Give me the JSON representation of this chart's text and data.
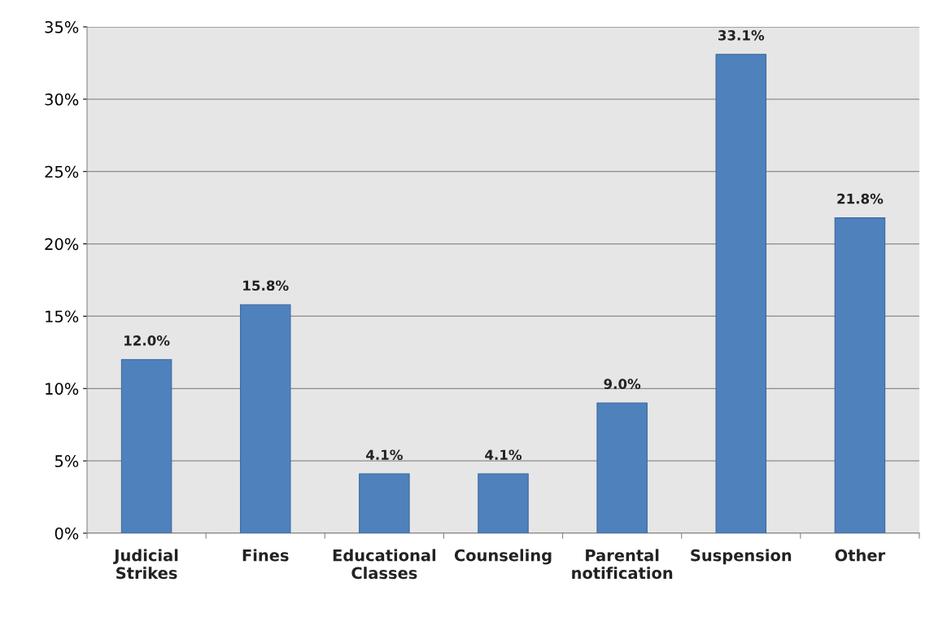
{
  "chart_data": {
    "type": "bar",
    "categories": [
      "Judicial\nStrikes",
      "Fines",
      "Educational\nClasses",
      "Counseling",
      "Parental\nnotification",
      "Suspension",
      "Other"
    ],
    "values": [
      12.0,
      15.8,
      4.1,
      4.1,
      9.0,
      33.1,
      21.8
    ],
    "value_labels": [
      "12.0%",
      "15.8%",
      "4.1%",
      "4.1%",
      "9.0%",
      "33.1%",
      "21.8%"
    ],
    "color": "#4f81bd",
    "ylim": [
      0,
      35
    ],
    "yticks": [
      {
        "value": 0,
        "label": "0%"
      },
      {
        "value": 5,
        "label": "5%"
      },
      {
        "value": 10,
        "label": "10%"
      },
      {
        "value": 15,
        "label": "15%"
      },
      {
        "value": 20,
        "label": "20%"
      },
      {
        "value": 25,
        "label": "25%"
      },
      {
        "value": 30,
        "label": "30%"
      },
      {
        "value": 35,
        "label": "35%"
      }
    ],
    "grid": "y",
    "legend": false
  }
}
